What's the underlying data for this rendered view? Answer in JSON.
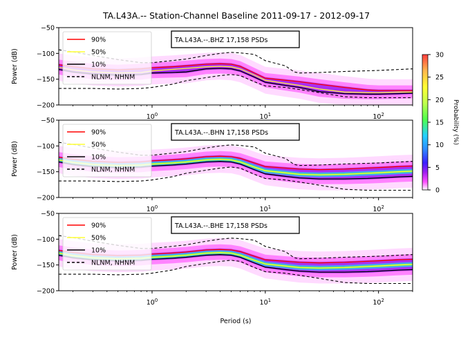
{
  "title": "TA.L43A.-- Station-Channel Baseline 2011-09-17 - 2012-09-17",
  "chart_data": [
    {
      "type": "heatmap",
      "channel_label": "TA.L43A.--.BHZ 17,158 PSDs",
      "xlabel": "",
      "ylabel": "Power (dB)",
      "xscale": "log",
      "xlim": [
        0.15,
        200
      ],
      "ylim": [
        -200,
        -50
      ],
      "yticks": [
        -200,
        -150,
        -100,
        -50
      ],
      "xticks": [
        1,
        10,
        100
      ],
      "legend": [
        "90%",
        "50%",
        "10%",
        "NLNM, NHNM"
      ],
      "legend_position": "top-left",
      "series": [
        {
          "name": "90%",
          "x": [
            0.15,
            0.2,
            0.3,
            0.5,
            0.8,
            1,
            1.5,
            2,
            3,
            4,
            5,
            6,
            8,
            10,
            15,
            20,
            30,
            50,
            80,
            100,
            150,
            200
          ],
          "y": [
            -122,
            -126,
            -130,
            -132,
            -130,
            -128,
            -126,
            -124,
            -121,
            -120,
            -121,
            -125,
            -138,
            -148,
            -152,
            -155,
            -160,
            -166,
            -171,
            -172,
            -172,
            -172
          ]
        },
        {
          "name": "50%",
          "x": [
            0.15,
            0.2,
            0.3,
            0.5,
            0.8,
            1,
            1.5,
            2,
            3,
            4,
            5,
            6,
            8,
            10,
            15,
            20,
            30,
            50,
            80,
            100,
            150,
            200
          ],
          "y": [
            -127,
            -132,
            -136,
            -138,
            -137,
            -134,
            -131,
            -129,
            -126,
            -125,
            -126,
            -130,
            -142,
            -152,
            -158,
            -162,
            -169,
            -175,
            -176,
            -176,
            -175,
            -175
          ]
        },
        {
          "name": "10%",
          "x": [
            0.15,
            0.2,
            0.3,
            0.5,
            0.8,
            1,
            1.5,
            2,
            3,
            4,
            5,
            6,
            8,
            10,
            15,
            20,
            30,
            50,
            80,
            100,
            150,
            200
          ],
          "y": [
            -131,
            -136,
            -140,
            -142,
            -141,
            -138,
            -137,
            -136,
            -130,
            -129,
            -130,
            -134,
            -146,
            -156,
            -162,
            -166,
            -174,
            -178,
            -179,
            -179,
            -178,
            -177
          ]
        }
      ]
    },
    {
      "type": "heatmap",
      "channel_label": "TA.L43A.--.BHN 17,158 PSDs",
      "xlabel": "",
      "ylabel": "Power (dB)",
      "xscale": "log",
      "xlim": [
        0.15,
        200
      ],
      "ylim": [
        -200,
        -50
      ],
      "yticks": [
        -200,
        -150,
        -100,
        -50
      ],
      "xticks": [
        1,
        10,
        100
      ],
      "legend": [
        "90%",
        "50%",
        "10%",
        "NLNM, NHNM"
      ],
      "legend_position": "top-left",
      "series": [
        {
          "name": "90%",
          "x": [
            0.15,
            0.2,
            0.3,
            0.5,
            0.8,
            1,
            1.5,
            2,
            3,
            4,
            5,
            6,
            8,
            10,
            15,
            20,
            30,
            50,
            80,
            100,
            150,
            200
          ],
          "y": [
            -122,
            -126,
            -130,
            -132,
            -131,
            -129,
            -127,
            -125,
            -121,
            -120,
            -121,
            -124,
            -133,
            -140,
            -143,
            -145,
            -146,
            -145,
            -143,
            -142,
            -140,
            -139
          ]
        },
        {
          "name": "50%",
          "x": [
            0.15,
            0.2,
            0.3,
            0.5,
            0.8,
            1,
            1.5,
            2,
            3,
            4,
            5,
            6,
            8,
            10,
            15,
            20,
            30,
            50,
            80,
            100,
            150,
            200
          ],
          "y": [
            -127,
            -132,
            -136,
            -138,
            -137,
            -135,
            -133,
            -131,
            -127,
            -126,
            -127,
            -131,
            -141,
            -148,
            -152,
            -155,
            -156,
            -155,
            -153,
            -152,
            -150,
            -149
          ]
        },
        {
          "name": "10%",
          "x": [
            0.15,
            0.2,
            0.3,
            0.5,
            0.8,
            1,
            1.5,
            2,
            3,
            4,
            5,
            6,
            8,
            10,
            15,
            20,
            30,
            50,
            80,
            100,
            150,
            200
          ],
          "y": [
            -131,
            -136,
            -140,
            -142,
            -141,
            -139,
            -137,
            -135,
            -131,
            -130,
            -131,
            -135,
            -146,
            -154,
            -159,
            -162,
            -164,
            -164,
            -163,
            -162,
            -160,
            -159
          ]
        }
      ]
    },
    {
      "type": "heatmap",
      "channel_label": "TA.L43A.--.BHE 17,158 PSDs",
      "xlabel": "Period (s)",
      "ylabel": "Power (dB)",
      "xscale": "log",
      "xlim": [
        0.15,
        200
      ],
      "ylim": [
        -200,
        -50
      ],
      "yticks": [
        -200,
        -150,
        -100,
        -50
      ],
      "xticks": [
        1,
        10,
        100
      ],
      "legend": [
        "90%",
        "50%",
        "10%",
        "NLNM, NHNM"
      ],
      "legend_position": "top-left",
      "series": [
        {
          "name": "90%",
          "x": [
            0.15,
            0.2,
            0.3,
            0.5,
            0.8,
            1,
            1.5,
            2,
            3,
            4,
            5,
            6,
            8,
            10,
            15,
            20,
            30,
            50,
            80,
            100,
            150,
            200
          ],
          "y": [
            -122,
            -126,
            -130,
            -132,
            -131,
            -129,
            -127,
            -125,
            -121,
            -120,
            -121,
            -124,
            -133,
            -140,
            -143,
            -145,
            -146,
            -145,
            -143,
            -142,
            -140,
            -139
          ]
        },
        {
          "name": "50%",
          "x": [
            0.15,
            0.2,
            0.3,
            0.5,
            0.8,
            1,
            1.5,
            2,
            3,
            4,
            5,
            6,
            8,
            10,
            15,
            20,
            30,
            50,
            80,
            100,
            150,
            200
          ],
          "y": [
            -127,
            -132,
            -136,
            -138,
            -137,
            -135,
            -133,
            -131,
            -127,
            -126,
            -127,
            -131,
            -141,
            -148,
            -152,
            -155,
            -156,
            -155,
            -153,
            -152,
            -150,
            -149
          ]
        },
        {
          "name": "10%",
          "x": [
            0.15,
            0.2,
            0.3,
            0.5,
            0.8,
            1,
            1.5,
            2,
            3,
            4,
            5,
            6,
            8,
            10,
            15,
            20,
            30,
            50,
            80,
            100,
            150,
            200
          ],
          "y": [
            -131,
            -136,
            -140,
            -142,
            -141,
            -139,
            -137,
            -135,
            -131,
            -130,
            -131,
            -135,
            -146,
            -154,
            -159,
            -162,
            -164,
            -164,
            -163,
            -162,
            -160,
            -159
          ]
        }
      ]
    }
  ],
  "noise_models": {
    "nhnm": {
      "x": [
        0.15,
        0.2,
        0.3,
        0.5,
        0.8,
        1,
        1.5,
        2,
        3,
        4,
        5,
        6,
        8,
        10,
        15,
        18,
        20,
        30,
        50,
        100,
        200
      ],
      "y": [
        -93,
        -97,
        -104,
        -112,
        -118,
        -118,
        -114,
        -111,
        -104,
        -100,
        -98,
        -99,
        -102,
        -114,
        -124,
        -136,
        -138,
        -137,
        -135,
        -133,
        -130
      ]
    },
    "nlnm": {
      "x": [
        0.15,
        0.2,
        0.3,
        0.5,
        0.8,
        1,
        1.5,
        2,
        3,
        4,
        5,
        6,
        8,
        10,
        15,
        20,
        30,
        50,
        80,
        100,
        150,
        200
      ],
      "y": [
        -168,
        -168,
        -168,
        -169,
        -168,
        -166,
        -160,
        -153,
        -147,
        -143,
        -141,
        -143,
        -155,
        -163,
        -166,
        -170,
        -176,
        -184,
        -186,
        -186,
        -186,
        -186
      ]
    }
  },
  "colorbar": {
    "label": "Probability (%)",
    "min": 0,
    "max": 30,
    "ticks": [
      "0",
      "5",
      "10",
      "15",
      "20",
      "25",
      "30"
    ]
  },
  "colors": {
    "p90": "#ff0000",
    "p50": "#ffff33",
    "p10": "#000000",
    "noise_model": "#000000"
  }
}
